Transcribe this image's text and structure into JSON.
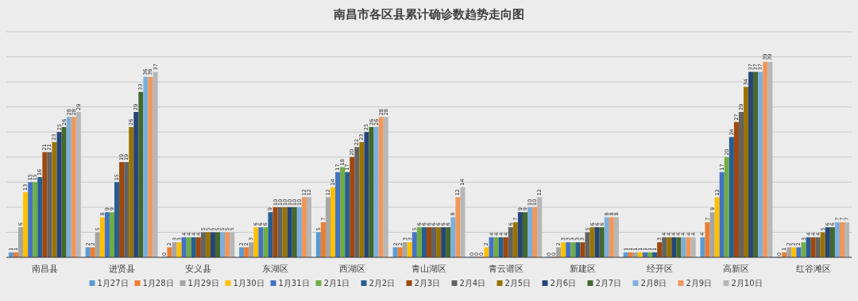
{
  "chart_data": {
    "type": "bar",
    "title": "南昌市各区县累计确诊数趋势走向图",
    "categories": [
      "南昌县",
      "进贤县",
      "安义县",
      "东湖区",
      "西湖区",
      "青山湖区",
      "青云谱区",
      "新建区",
      "经开区",
      "高新区",
      "红谷滩区"
    ],
    "ylim": [
      0,
      45
    ],
    "yticks": [
      {
        "value": 0,
        "label": null
      },
      {
        "value": 5,
        "label": null
      },
      {
        "value": 10,
        "label": null
      },
      {
        "value": 15,
        "label": null
      },
      {
        "value": 20,
        "label": null
      },
      {
        "value": 25,
        "label": null
      },
      {
        "value": 30,
        "label": null
      },
      {
        "value": 35,
        "label": null
      },
      {
        "value": 40,
        "label": null
      },
      {
        "value": 45,
        "label": null
      }
    ],
    "grid": "y",
    "legend": "bottom",
    "data_labels": true,
    "tick_labels": "x",
    "series": [
      {
        "name": "1月27日",
        "color": "#5b9bd5",
        "values": [
          1,
          2,
          0,
          2,
          5,
          2,
          0,
          0,
          1,
          4,
          0
        ]
      },
      {
        "name": "1月28日",
        "color": "#ed7d31",
        "values": [
          1,
          2,
          2,
          2,
          7,
          2,
          0,
          0,
          1,
          7,
          1
        ]
      },
      {
        "name": "1月29日",
        "color": "#a5a5a5",
        "values": [
          6,
          5,
          3,
          3,
          12,
          3,
          0,
          2,
          1,
          9,
          2
        ]
      },
      {
        "name": "1月30日",
        "color": "#ffc000",
        "values": [
          13,
          8,
          3,
          6,
          14,
          3,
          2,
          3,
          1,
          12,
          2
        ]
      },
      {
        "name": "1月31日",
        "color": "#4472c4",
        "values": [
          15,
          9,
          4,
          6,
          17,
          5,
          4,
          3,
          1,
          17,
          2
        ]
      },
      {
        "name": "2月1日",
        "color": "#70ad47",
        "values": [
          15,
          9,
          4,
          6,
          18,
          6,
          4,
          3,
          1,
          20,
          3
        ]
      },
      {
        "name": "2月2日",
        "color": "#255e91",
        "values": [
          16,
          15,
          4,
          9,
          17,
          6,
          4,
          3,
          1,
          24,
          4
        ]
      },
      {
        "name": "2月3日",
        "color": "#9e480e",
        "values": [
          21,
          19,
          4,
          10,
          20,
          6,
          4,
          3,
          3,
          27,
          4
        ]
      },
      {
        "name": "2月4日",
        "color": "#636363",
        "values": [
          21,
          19,
          5,
          10,
          22,
          6,
          6,
          5,
          4,
          29,
          4
        ]
      },
      {
        "name": "2月5日",
        "color": "#997300",
        "values": [
          23,
          26,
          5,
          10,
          23,
          6,
          7,
          6,
          4,
          34,
          5
        ]
      },
      {
        "name": "2月6日",
        "color": "#264478",
        "values": [
          25,
          29,
          5,
          10,
          25,
          6,
          9,
          6,
          4,
          37,
          6
        ]
      },
      {
        "name": "2月7日",
        "color": "#43682b",
        "values": [
          26,
          33,
          5,
          10,
          26,
          6,
          9,
          6,
          4,
          37,
          6
        ]
      },
      {
        "name": "2月8日",
        "color": "#7cafdd",
        "values": [
          28,
          36,
          5,
          10,
          26,
          8,
          10,
          8,
          4,
          37,
          7
        ]
      },
      {
        "name": "2月9日",
        "color": "#f1975a",
        "values": [
          28,
          36,
          5,
          12,
          28,
          12,
          10,
          8,
          4,
          39,
          7
        ]
      },
      {
        "name": "2月10日",
        "color": "#b7b7b7",
        "values": [
          29,
          37,
          5,
          12,
          28,
          14,
          12,
          8,
          4,
          39,
          7
        ]
      }
    ]
  }
}
